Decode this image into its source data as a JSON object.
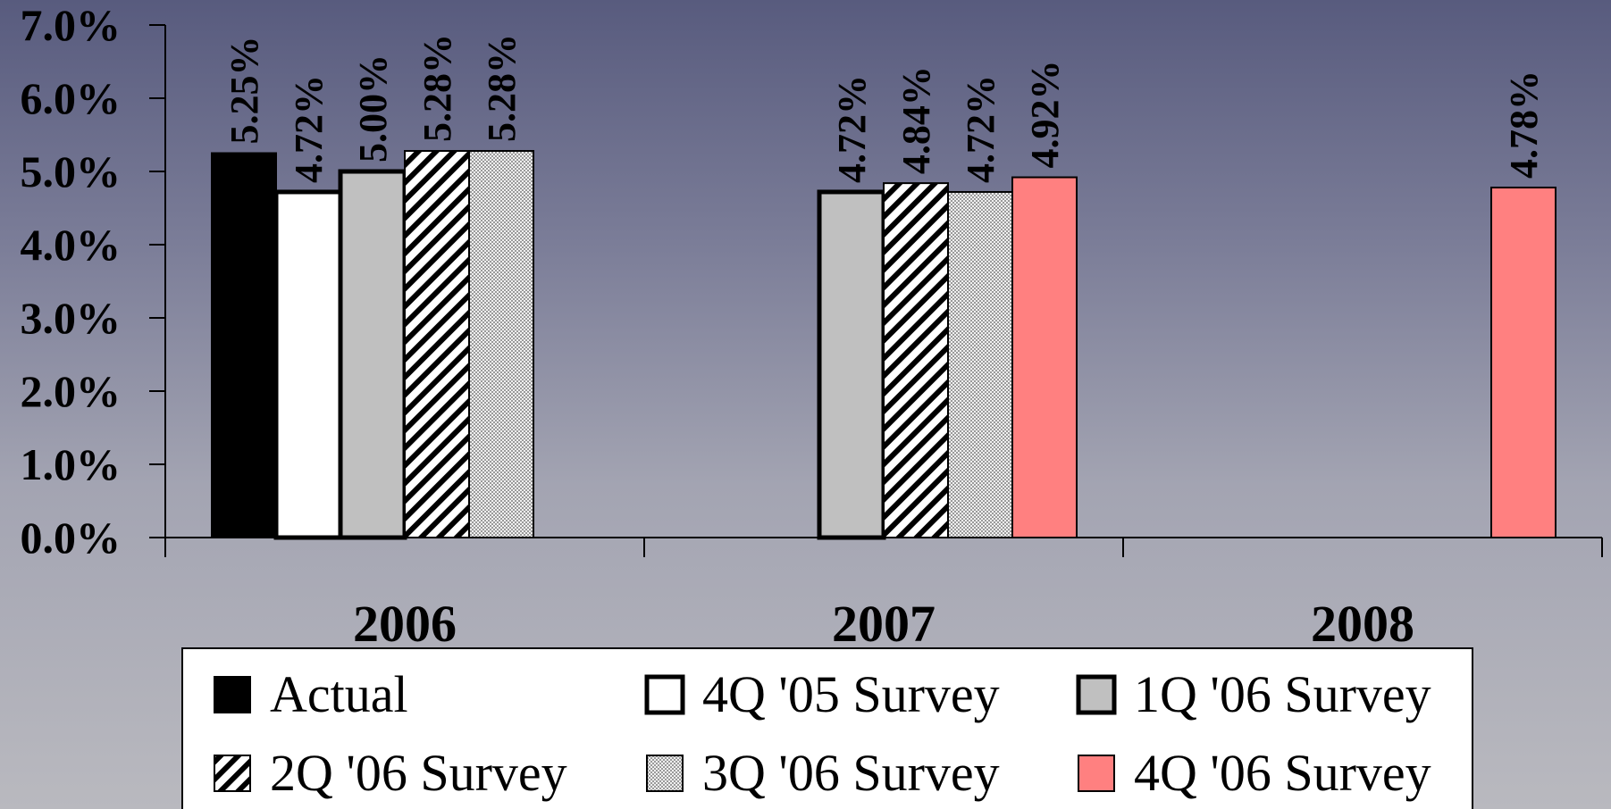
{
  "chart_data": {
    "type": "bar",
    "categories": [
      "2006",
      "2007",
      "2008"
    ],
    "ylim": [
      0,
      0.07
    ],
    "yticks": [
      0,
      0.01,
      0.02,
      0.03,
      0.04,
      0.05,
      0.06,
      0.07
    ],
    "ytick_labels": [
      "0.0%",
      "1.0%",
      "2.0%",
      "3.0%",
      "4.0%",
      "5.0%",
      "6.0%",
      "7.0%"
    ],
    "legend_position": "bottom",
    "series": [
      {
        "name": "Actual",
        "values": [
          0.0525,
          null,
          null
        ],
        "labels": [
          "5.25%",
          "",
          ""
        ],
        "color": "#000000",
        "pattern": "solid"
      },
      {
        "name": "4Q '05 Survey",
        "values": [
          0.0472,
          null,
          null
        ],
        "labels": [
          "4.72%",
          "",
          ""
        ],
        "color": "#ffffff",
        "pattern": "outline"
      },
      {
        "name": "1Q '06 Survey",
        "values": [
          0.05,
          0.0472,
          null
        ],
        "labels": [
          "5.00%",
          "4.72%",
          ""
        ],
        "color": "#c0c0c0",
        "pattern": "solid-thick"
      },
      {
        "name": "2Q '06 Survey",
        "values": [
          0.0528,
          0.0484,
          null
        ],
        "labels": [
          "5.28%",
          "4.84%",
          ""
        ],
        "color": "#ffffff",
        "pattern": "diagonal"
      },
      {
        "name": "3Q '06 Survey",
        "values": [
          0.0528,
          0.0472,
          null
        ],
        "labels": [
          "5.28%",
          "4.72%",
          ""
        ],
        "color": "#e6e6e6",
        "pattern": "dots"
      },
      {
        "name": "4Q '06 Survey",
        "values": [
          null,
          0.0492,
          0.0478
        ],
        "labels": [
          "",
          "4.92%",
          "4.78%"
        ],
        "color": "#ff8080",
        "pattern": "solid"
      }
    ]
  }
}
